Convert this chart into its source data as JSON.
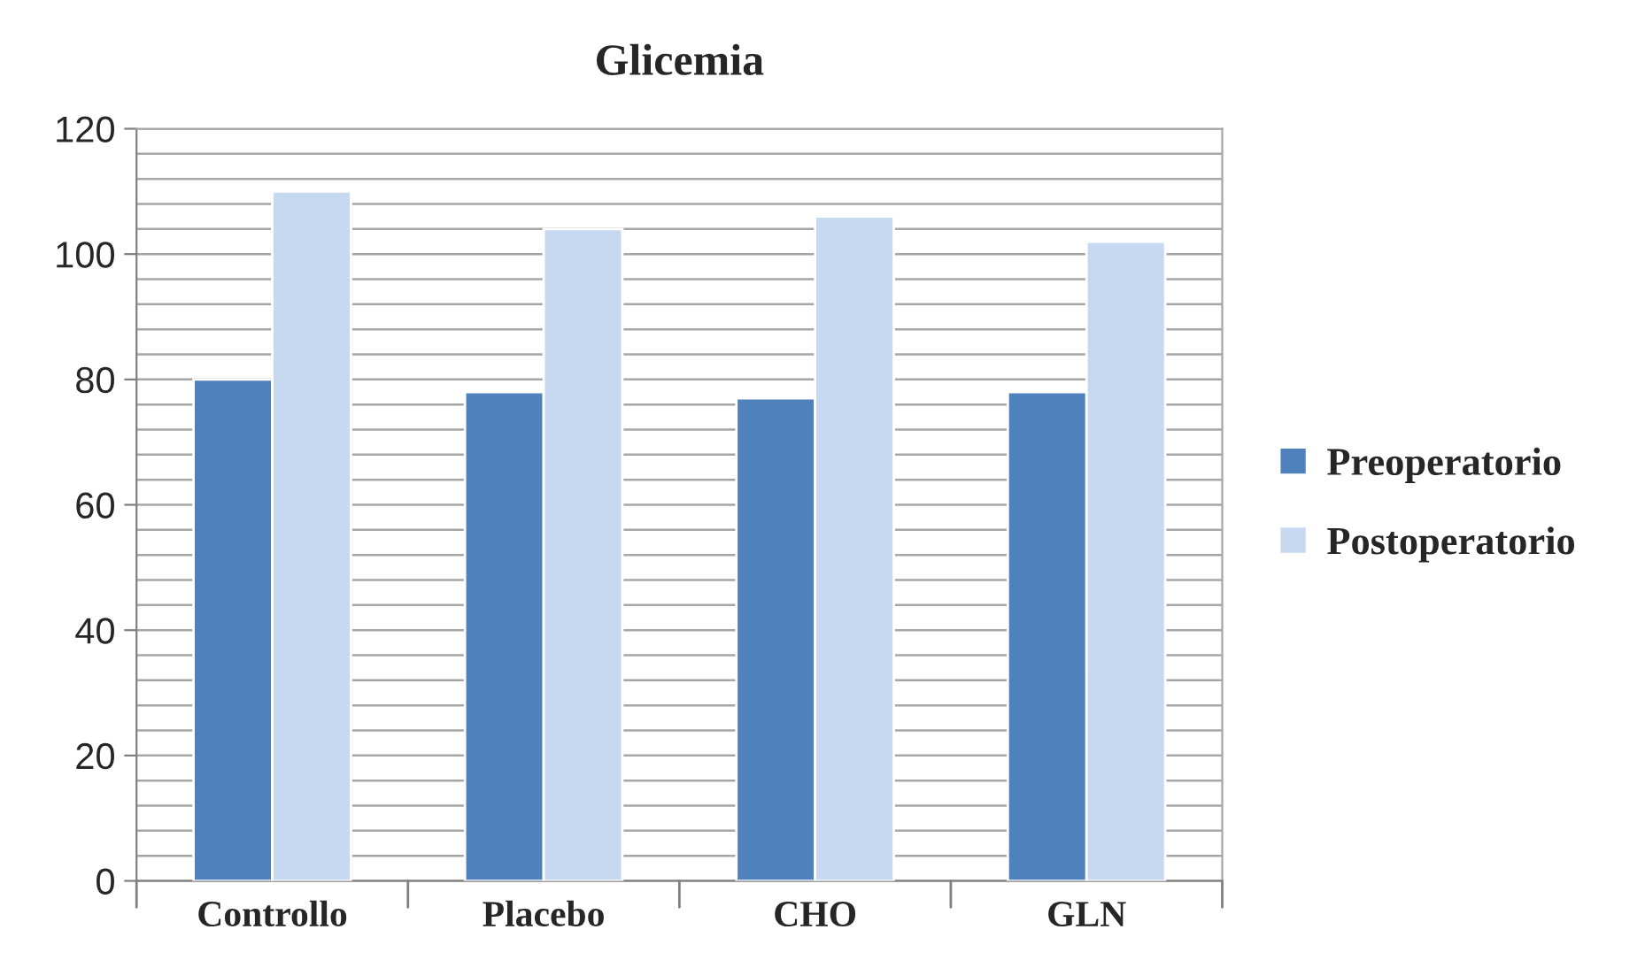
{
  "chart_data": {
    "type": "bar",
    "title": "Glicemia",
    "categories": [
      "Controllo",
      "Placebo",
      "CHO",
      "GLN"
    ],
    "series": [
      {
        "name": "Preoperatorio",
        "color": "#4f81bd",
        "values": [
          80,
          78,
          77,
          78
        ]
      },
      {
        "name": "Postoperatorio",
        "color": "#c6d9f1",
        "values": [
          110,
          104,
          106,
          102
        ]
      }
    ],
    "ylim": [
      0,
      120
    ],
    "yticks": [
      0,
      20,
      40,
      60,
      80,
      100,
      120
    ],
    "grid": "y",
    "legend": "right"
  }
}
